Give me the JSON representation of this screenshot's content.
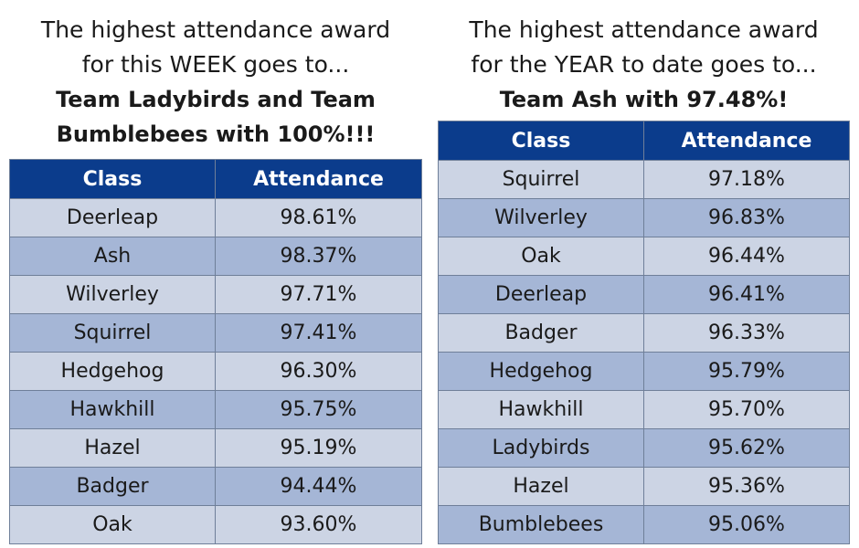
{
  "week": {
    "line1": "The highest attendance award",
    "line2": "for this WEEK goes to...",
    "winner_line1": "Team Ladybirds and Team",
    "winner_line2": "Bumblebees with 100%!!!",
    "headers": {
      "class": "Class",
      "attendance": "Attendance"
    },
    "rows": [
      {
        "class": "Deerleap",
        "attendance": "98.61%"
      },
      {
        "class": "Ash",
        "attendance": "98.37%"
      },
      {
        "class": "Wilverley",
        "attendance": "97.71%"
      },
      {
        "class": "Squirrel",
        "attendance": "97.41%"
      },
      {
        "class": "Hedgehog",
        "attendance": "96.30%"
      },
      {
        "class": "Hawkhill",
        "attendance": "95.75%"
      },
      {
        "class": "Hazel",
        "attendance": "95.19%"
      },
      {
        "class": "Badger",
        "attendance": "94.44%"
      },
      {
        "class": "Oak",
        "attendance": "93.60%"
      }
    ]
  },
  "year": {
    "line1": "The highest attendance award",
    "line2": "for the YEAR to date goes to...",
    "winner_line1": "Team Ash with 97.48%!",
    "headers": {
      "class": "Class",
      "attendance": "Attendance"
    },
    "rows": [
      {
        "class": "Squirrel",
        "attendance": "97.18%"
      },
      {
        "class": "Wilverley",
        "attendance": "96.83%"
      },
      {
        "class": "Oak",
        "attendance": "96.44%"
      },
      {
        "class": "Deerleap",
        "attendance": "96.41%"
      },
      {
        "class": "Badger",
        "attendance": "96.33%"
      },
      {
        "class": "Hedgehog",
        "attendance": "95.79%"
      },
      {
        "class": "Hawkhill",
        "attendance": "95.70%"
      },
      {
        "class": "Ladybirds",
        "attendance": "95.62%"
      },
      {
        "class": "Hazel",
        "attendance": "95.36%"
      },
      {
        "class": "Bumblebees",
        "attendance": "95.06%"
      }
    ]
  },
  "colors": {
    "header_bg": "#0b3c8c",
    "row_light": "#ccd4e4",
    "row_dark": "#a5b6d6"
  }
}
